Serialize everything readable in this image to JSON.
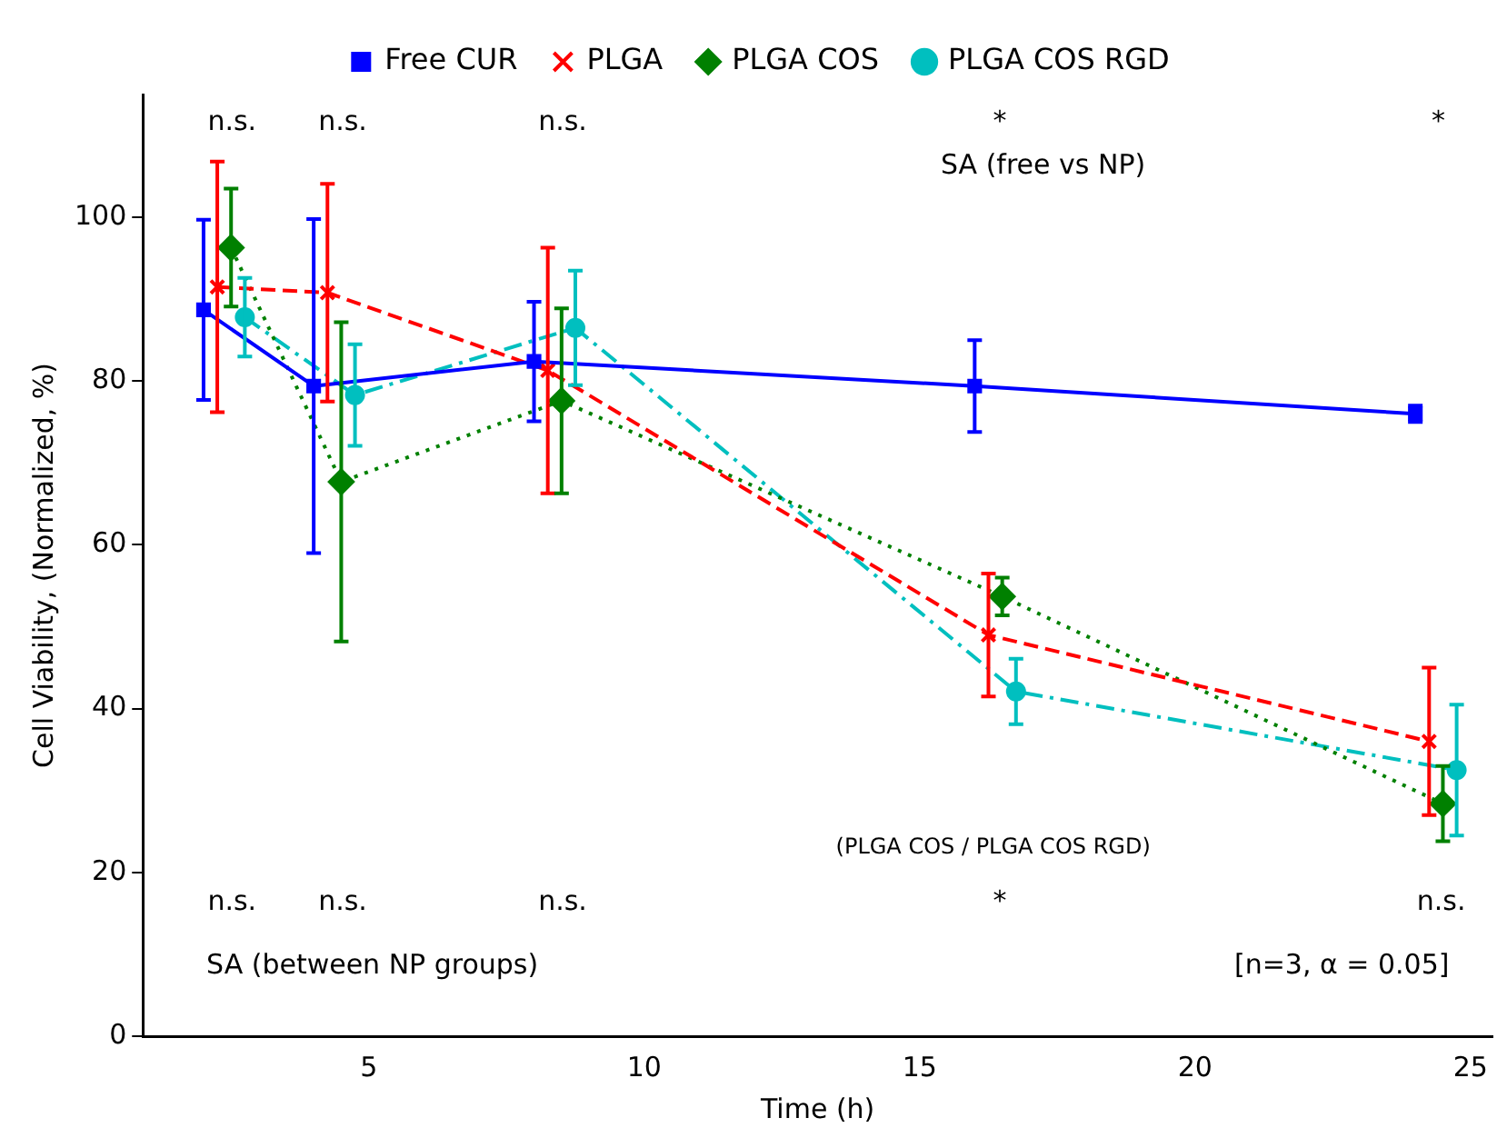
{
  "chart_data": {
    "type": "line",
    "xlabel": "Time (h)",
    "ylabel": "Cell Viability, (Normalized, %)",
    "xlim": [
      0.9,
      25.4
    ],
    "xticks": [
      5,
      10,
      15,
      20,
      25
    ],
    "ylim": [
      0,
      115
    ],
    "yticks": [
      0,
      20,
      40,
      60,
      80,
      100
    ],
    "grid": false,
    "legend": "top",
    "series": [
      {
        "name": "Free CUR",
        "color": "#0000ff",
        "marker": "square",
        "line_style": "solid",
        "x": [
          2,
          4,
          8,
          16,
          24
        ],
        "values": [
          88.7,
          79.4,
          82.4,
          79.4,
          76
        ],
        "errors": [
          11,
          20.4,
          7.3,
          5.6,
          1
        ]
      },
      {
        "name": "PLGA",
        "color": "#ff0000",
        "marker": "cross",
        "line_style": "dashed",
        "x": [
          2.25,
          4.25,
          8.25,
          16.25,
          24.25
        ],
        "values": [
          91.5,
          90.8,
          81.3,
          49,
          36
        ],
        "errors": [
          15.3,
          13.3,
          15,
          7.5,
          9
        ]
      },
      {
        "name": "PLGA COS",
        "color": "#008000",
        "marker": "diamond",
        "line_style": "dotted",
        "x": [
          2.5,
          4.5,
          8.5,
          16.5,
          24.5
        ],
        "values": [
          96.3,
          67.7,
          77.6,
          53.7,
          28.4
        ],
        "errors": [
          7.2,
          19.5,
          11.3,
          2.3,
          4.6
        ]
      },
      {
        "name": "PLGA COS RGD",
        "color": "#00bfbf",
        "marker": "circle",
        "line_style": "dashdot",
        "x": [
          2.75,
          4.75,
          8.75,
          16.75,
          24.75
        ],
        "values": [
          87.8,
          78.3,
          86.5,
          42.1,
          32.5
        ],
        "errors": [
          4.8,
          6.2,
          7,
          4,
          8
        ]
      }
    ],
    "annotations": [
      "n.s.",
      "n.s.",
      "n.s.",
      "*",
      "*",
      "SA (free vs NP)",
      "n.s.",
      "n.s.",
      "n.s.",
      "*",
      "n.s.",
      "(PLGA COS / PLGA COS RGD)",
      "SA (between NP groups)",
      "[n=3, α = 0.05]"
    ]
  }
}
